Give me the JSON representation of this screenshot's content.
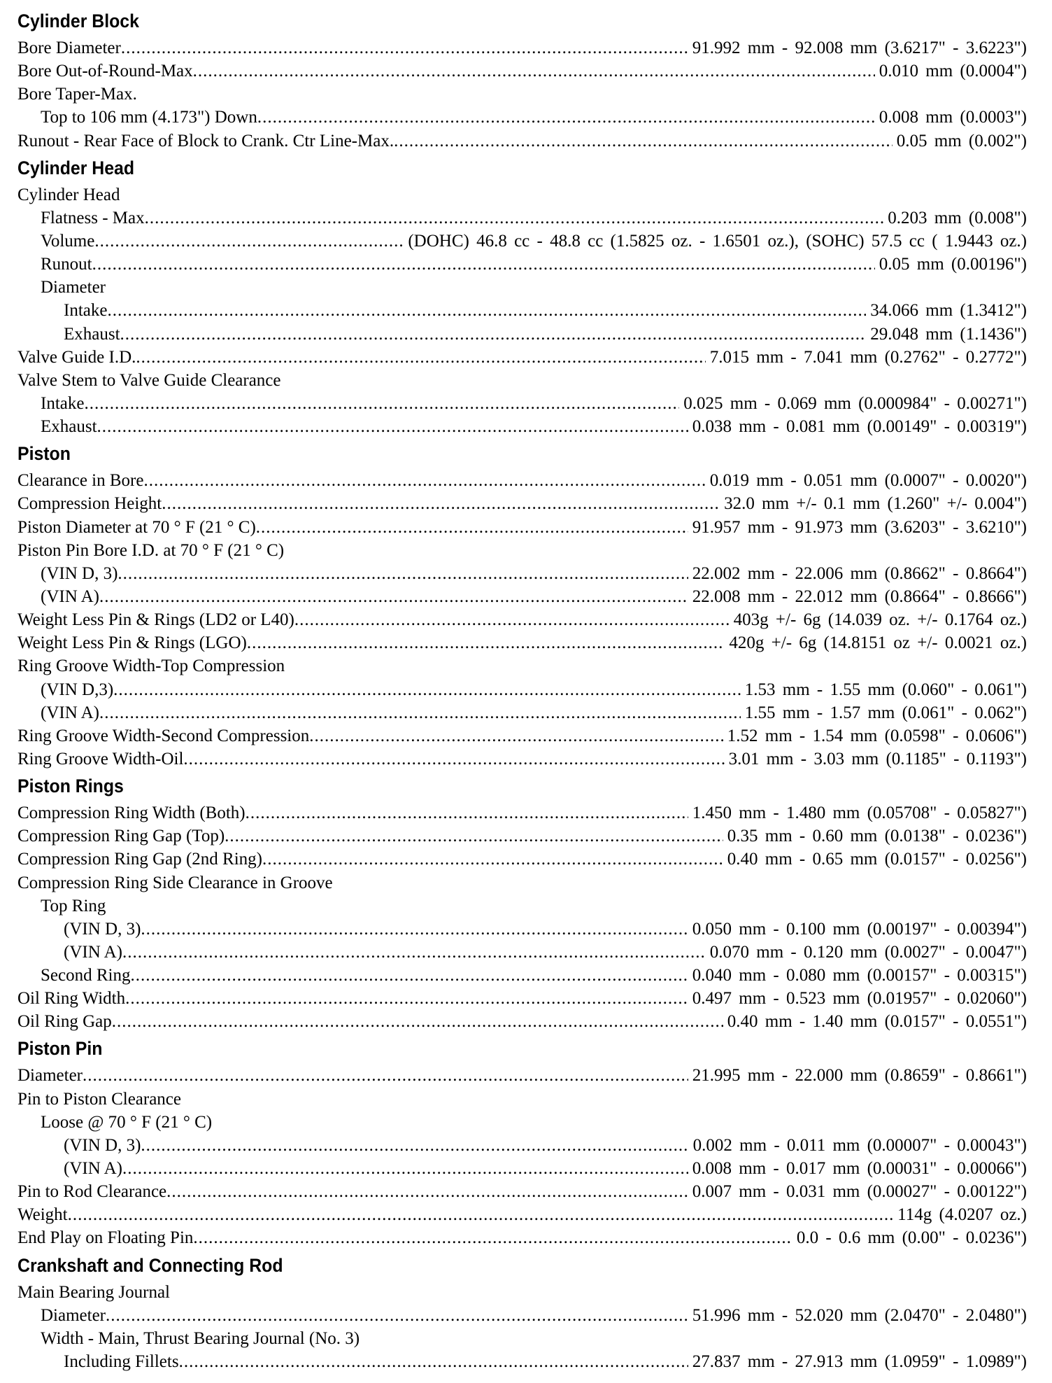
{
  "sections": [
    {
      "title": "Cylinder Block",
      "rows": [
        {
          "label": "Bore Diameter",
          "value": "91.992 mm - 92.008 mm (3.6217\" - 3.6223\")",
          "indent": 0
        },
        {
          "label": "Bore Out-of-Round-Max",
          "value": "0.010 mm (0.0004\")",
          "indent": 0
        },
        {
          "label": "Bore Taper-Max.",
          "value": "",
          "indent": 0
        },
        {
          "label": "Top to 106 mm (4.173\") Down",
          "value": "0.008 mm (0.0003\")",
          "indent": 1
        },
        {
          "label": "Runout - Rear Face of Block to Crank. Ctr Line-Max. ",
          "value": "0.05 mm (0.002\")",
          "indent": 0
        }
      ]
    },
    {
      "title": "Cylinder Head",
      "rows": [
        {
          "label": "Cylinder Head",
          "value": "",
          "indent": 0
        },
        {
          "label": "Flatness - Max",
          "value": "0.203 mm (0.008\")",
          "indent": 1
        },
        {
          "label": "Volume",
          "value": "(DOHC) 46.8 cc - 48.8 cc (1.5825 oz. - 1.6501 oz.), (SOHC) 57.5 cc ( 1.9443 oz.)",
          "indent": 1
        },
        {
          "label": "Runout ",
          "value": "0.05 mm (0.00196\")",
          "indent": 1
        },
        {
          "label": "Diameter",
          "value": "",
          "indent": 1
        },
        {
          "label": "Intake ",
          "value": "34.066 mm (1.3412\")",
          "indent": 2
        },
        {
          "label": "Exhaust ",
          "value": "29.048 mm (1.1436\")",
          "indent": 2
        },
        {
          "label": "Valve Guide I.D.",
          "value": "7.015 mm - 7.041 mm (0.2762\" - 0.2772\")",
          "indent": 0
        },
        {
          "label": "Valve Stem to Valve Guide Clearance",
          "value": "",
          "indent": 0
        },
        {
          "label": "Intake",
          "value": "0.025 mm - 0.069 mm (0.000984\" - 0.00271\")",
          "indent": 1
        },
        {
          "label": "Exhaust",
          "value": "0.038 mm - 0.081 mm (0.00149\" - 0.00319\")",
          "indent": 1
        }
      ]
    },
    {
      "title": "Piston",
      "rows": [
        {
          "label": "Clearance in Bore ",
          "value": "0.019 mm - 0.051 mm (0.0007\" - 0.0020\")",
          "indent": 0
        },
        {
          "label": "Compression Height",
          "value": "32.0 mm +/- 0.1 mm (1.260\" +/- 0.004\")",
          "indent": 0
        },
        {
          "label": "Piston Diameter at 70 ° F (21 ° C)",
          "value": "91.957 mm - 91.973 mm (3.6203\" - 3.6210\")",
          "indent": 0
        },
        {
          "label": "Piston Pin Bore I.D. at 70 ° F (21 ° C)",
          "value": "",
          "indent": 0
        },
        {
          "label": "(VIN D, 3) ",
          "value": "22.002 mm - 22.006 mm (0.8662\" - 0.8664\")",
          "indent": 1
        },
        {
          "label": "(VIN A) ",
          "value": "22.008 mm - 22.012 mm (0.8664\" - 0.8666\")",
          "indent": 1
        },
        {
          "label": "Weight Less Pin & Rings (LD2 or L40) ",
          "value": "403g +/- 6g (14.039 oz. +/- 0.1764 oz.)",
          "indent": 0
        },
        {
          "label": "Weight Less Pin & Rings (LGO) ",
          "value": "420g +/- 6g (14.8151 oz +/- 0.0021 oz.)",
          "indent": 0
        },
        {
          "label": "Ring Groove Width-Top Compression",
          "value": "",
          "indent": 0
        },
        {
          "label": "(VIN D,3)",
          "value": "1.53 mm - 1.55 mm (0.060\" - 0.061\")",
          "indent": 1
        },
        {
          "label": "(VIN A) ",
          "value": "1.55 mm - 1.57 mm (0.061\" - 0.062\")",
          "indent": 1
        },
        {
          "label": "Ring Groove Width-Second Compression",
          "value": "1.52 mm - 1.54 mm (0.0598\" - 0.0606\")",
          "indent": 0
        },
        {
          "label": "Ring Groove Width-Oil ",
          "value": "3.01 mm - 3.03 mm (0.1185\" - 0.1193\")",
          "indent": 0
        }
      ]
    },
    {
      "title": "Piston Rings",
      "rows": [
        {
          "label": "Compression Ring Width (Both) ",
          "value": "1.450 mm - 1.480 mm (0.05708\" - 0.05827\")",
          "indent": 0
        },
        {
          "label": "Compression Ring Gap (Top) ",
          "value": "0.35 mm - 0.60 mm (0.0138\" - 0.0236\")",
          "indent": 0
        },
        {
          "label": "Compression Ring Gap (2nd Ring) ",
          "value": "0.40 mm - 0.65 mm (0.0157\" - 0.0256\")",
          "indent": 0
        },
        {
          "label": "Compression Ring Side Clearance in Groove",
          "value": "",
          "indent": 0
        },
        {
          "label": "Top Ring",
          "value": "",
          "indent": 1
        },
        {
          "label": "(VIN D, 3)",
          "value": "0.050 mm - 0.100 mm (0.00197\" - 0.00394\")",
          "indent": 2
        },
        {
          "label": "(VIN A)",
          "value": "0.070 mm - 0.120 mm (0.0027\" - 0.0047\")",
          "indent": 2
        },
        {
          "label": "Second Ring ",
          "value": "0.040 mm - 0.080 mm (0.00157\" - 0.00315\")",
          "indent": 1
        },
        {
          "label": "Oil Ring Width ",
          "value": "0.497 mm - 0.523 mm (0.01957\" - 0.02060\")",
          "indent": 0
        },
        {
          "label": "Oil Ring Gap",
          "value": "0.40 mm - 1.40 mm (0.0157\" - 0.0551\")",
          "indent": 0
        }
      ]
    },
    {
      "title": "Piston Pin",
      "rows": [
        {
          "label": "Diameter ",
          "value": "21.995 mm - 22.000 mm (0.8659\" - 0.8661\")",
          "indent": 0
        },
        {
          "label": "Pin to Piston Clearance",
          "value": "",
          "indent": 0
        },
        {
          "label": "Loose @ 70 ° F (21 ° C)",
          "value": "",
          "indent": 1
        },
        {
          "label": "(VIN D, 3)",
          "value": "0.002 mm - 0.011 mm (0.00007\" - 0.00043\")",
          "indent": 2
        },
        {
          "label": "(VIN A)",
          "value": "0.008 mm - 0.017 mm (0.00031\" - 0.00066\")",
          "indent": 2
        },
        {
          "label": "Pin to Rod Clearance ",
          "value": "0.007 mm - 0.031 mm (0.00027\" - 0.00122\")",
          "indent": 0
        },
        {
          "label": "Weight",
          "value": "114g (4.0207 oz.)",
          "indent": 0
        },
        {
          "label": "End Play on Floating Pin ",
          "value": "0.0 - 0.6 mm (0.00\" - 0.0236\")",
          "indent": 0
        }
      ]
    },
    {
      "title": "Crankshaft and Connecting Rod",
      "rows": [
        {
          "label": "Main Bearing Journal",
          "value": "",
          "indent": 0
        },
        {
          "label": "Diameter",
          "value": "51.996 mm - 52.020 mm (2.0470\" - 2.0480\")",
          "indent": 1
        },
        {
          "label": "Width - Main, Thrust Bearing Journal (No. 3)",
          "value": "",
          "indent": 1
        },
        {
          "label": "Including Fillets ",
          "value": "27.837 mm - 27.913 mm (1.0959\" - 1.0989\")",
          "indent": 2
        }
      ]
    }
  ]
}
